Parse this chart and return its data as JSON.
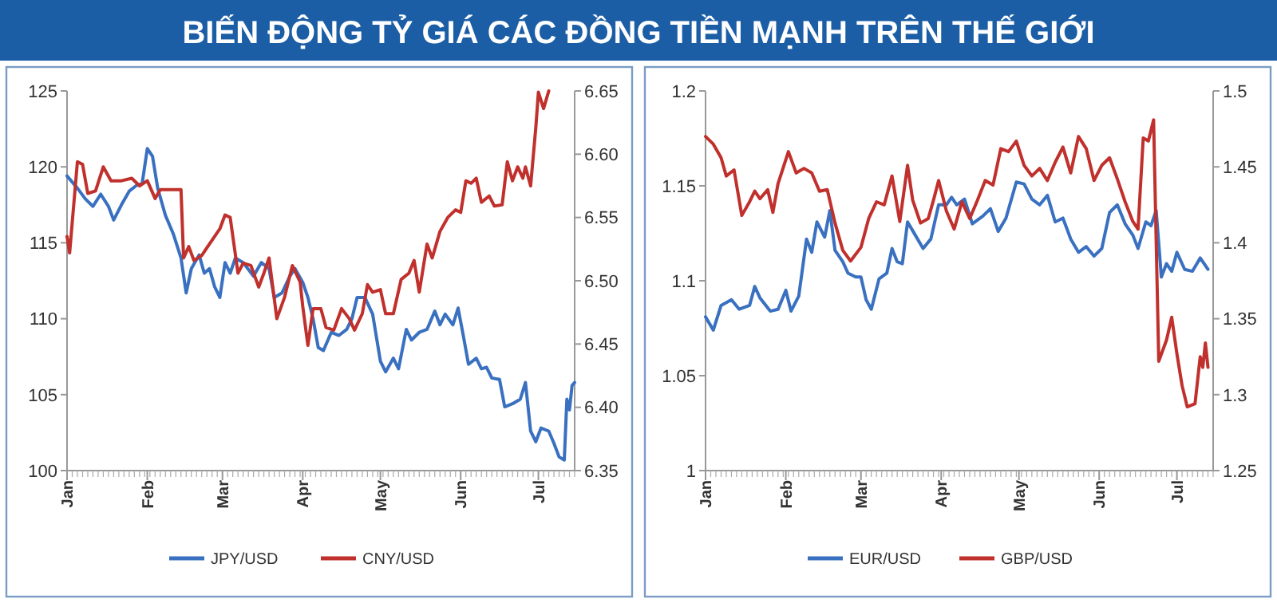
{
  "chart_data": [
    {
      "type": "line",
      "title": "BIẾN ĐỘNG TỶ GIÁ CÁC ĐỒNG TIỀN MẠNH TRÊN THẾ GIỚI",
      "legend": "bottom",
      "xlim": [
        "--01-01",
        "--07-15"
      ],
      "xticks": [
        {
          "value": "--01-01",
          "label": "Jan"
        },
        {
          "value": "--02-01",
          "label": "Feb"
        },
        {
          "value": "--03-01",
          "label": "Mar"
        },
        {
          "value": "--04-01",
          "label": "Apr"
        },
        {
          "value": "--05-01",
          "label": "May"
        },
        {
          "value": "--06-01",
          "label": "Jun"
        },
        {
          "value": "--07-01",
          "label": "Jul"
        }
      ],
      "ylim": [
        100,
        125
      ],
      "yticks": [
        100,
        105,
        110,
        115,
        120,
        125
      ],
      "y2lim": [
        6.35,
        6.65
      ],
      "y2ticks": [
        {
          "value": 6.35,
          "label": "6.35"
        },
        {
          "value": 6.4,
          "label": "6.40"
        },
        {
          "value": 6.45,
          "label": "6.45"
        },
        {
          "value": 6.5,
          "label": "6.50"
        },
        {
          "value": 6.55,
          "label": "6.55"
        },
        {
          "value": 6.6,
          "label": "6.60"
        },
        {
          "value": 6.65,
          "label": "6.65"
        }
      ],
      "series": [
        {
          "name": "JPY/USD",
          "color": "#3a70c0",
          "x": [
            "--01-01",
            "--01-05",
            "--01-08",
            "--01-11",
            "--01-14",
            "--01-17",
            "--01-19",
            "--01-22",
            "--01-25",
            "--01-28",
            "--01-30",
            "--02-01",
            "--02-03",
            "--02-05",
            "--02-08",
            "--02-11",
            "--02-14",
            "--02-16",
            "--02-18",
            "--02-21",
            "--02-23",
            "--02-25",
            "--02-27",
            "--02-29",
            "--03-02",
            "--03-04",
            "--03-06",
            "--03-09",
            "--03-13",
            "--03-16",
            "--03-19",
            "--03-21",
            "--03-24",
            "--03-27",
            "--03-29",
            "--04-01",
            "--04-03",
            "--04-05",
            "--04-07",
            "--04-09",
            "--04-12",
            "--04-15",
            "--04-18",
            "--04-20",
            "--04-22",
            "--04-25",
            "--04-28",
            "--05-01",
            "--05-03",
            "--05-06",
            "--05-08",
            "--05-11",
            "--05-13",
            "--05-16",
            "--05-19",
            "--05-22",
            "--05-24",
            "--05-26",
            "--05-29",
            "--05-31",
            "--06-02",
            "--06-04",
            "--06-07",
            "--06-09",
            "--06-11",
            "--06-13",
            "--06-16",
            "--06-18",
            "--06-21",
            "--06-24",
            "--06-26",
            "--06-28",
            "--06-30",
            "--07-02",
            "--07-05",
            "--07-07",
            "--07-09",
            "--07-11",
            "--07-12",
            "--07-13",
            "--07-14",
            "--07-15"
          ],
          "values": [
            119.4,
            118.6,
            117.9,
            117.4,
            118.2,
            117.4,
            116.5,
            117.5,
            118.4,
            118.8,
            118.9,
            121.2,
            120.7,
            118.6,
            116.8,
            115.6,
            114.0,
            111.7,
            113.3,
            114.2,
            113.0,
            113.3,
            112.1,
            111.4,
            113.7,
            113.0,
            114.0,
            113.7,
            112.8,
            113.7,
            113.3,
            111.4,
            111.7,
            112.8,
            113.3,
            112.4,
            111.4,
            110.0,
            108.1,
            107.9,
            109.1,
            108.9,
            109.3,
            110.0,
            111.4,
            111.4,
            110.3,
            107.2,
            106.5,
            107.4,
            106.7,
            109.3,
            108.6,
            109.1,
            109.3,
            110.5,
            109.6,
            110.3,
            109.6,
            110.7,
            108.9,
            107.0,
            107.4,
            106.7,
            106.8,
            106.1,
            106.0,
            104.2,
            104.4,
            104.7,
            105.8,
            102.6,
            101.9,
            102.8,
            102.6,
            101.8,
            100.9,
            100.7,
            104.7,
            104.0,
            105.6,
            105.8
          ]
        },
        {
          "name": "CNY/USD",
          "color": "#c0302c",
          "axis": "y2",
          "x": [
            "--01-01",
            "--01-02",
            "--01-05",
            "--01-07",
            "--01-09",
            "--01-12",
            "--01-15",
            "--01-18",
            "--01-22",
            "--01-26",
            "--01-29",
            "--02-01",
            "--02-04",
            "--02-06",
            "--02-10",
            "--02-14",
            "--02-15",
            "--02-17",
            "--02-19",
            "--02-22",
            "--02-25",
            "--02-29",
            "--03-02",
            "--03-04",
            "--03-07",
            "--03-09",
            "--03-12",
            "--03-15",
            "--03-17",
            "--03-19",
            "--03-22",
            "--03-25",
            "--03-28",
            "--03-31",
            "--04-01",
            "--04-03",
            "--04-05",
            "--04-08",
            "--04-10",
            "--04-13",
            "--04-16",
            "--04-19",
            "--04-21",
            "--04-24",
            "--04-26",
            "--04-28",
            "--05-01",
            "--05-03",
            "--05-06",
            "--05-09",
            "--05-12",
            "--05-14",
            "--05-16",
            "--05-19",
            "--05-21",
            "--05-24",
            "--05-27",
            "--05-30",
            "--06-01",
            "--06-03",
            "--06-05",
            "--06-07",
            "--06-09",
            "--06-12",
            "--06-14",
            "--06-17",
            "--06-19",
            "--06-21",
            "--06-23",
            "--06-25",
            "--06-26",
            "--06-28",
            "--06-30",
            "--07-01",
            "--07-03",
            "--07-05"
          ],
          "values": [
            6.535,
            6.522,
            6.594,
            6.592,
            6.569,
            6.571,
            6.59,
            6.579,
            6.579,
            6.581,
            6.575,
            6.579,
            6.565,
            6.572,
            6.572,
            6.572,
            6.518,
            6.527,
            6.516,
            6.52,
            6.529,
            6.541,
            6.552,
            6.55,
            6.506,
            6.514,
            6.512,
            6.495,
            6.506,
            6.518,
            6.47,
            6.487,
            6.512,
            6.499,
            6.48,
            6.449,
            6.478,
            6.478,
            6.463,
            6.461,
            6.478,
            6.47,
            6.461,
            6.474,
            6.497,
            6.491,
            6.493,
            6.474,
            6.474,
            6.501,
            6.506,
            6.516,
            6.491,
            6.529,
            6.518,
            6.539,
            6.55,
            6.556,
            6.554,
            6.579,
            6.577,
            6.581,
            6.562,
            6.567,
            6.559,
            6.56,
            6.594,
            6.579,
            6.59,
            6.581,
            6.59,
            6.575,
            6.621,
            6.649,
            6.636,
            6.65
          ]
        }
      ]
    },
    {
      "type": "line",
      "legend": "bottom",
      "xlim": [
        "--01-01",
        "--07-15"
      ],
      "xticks": [
        {
          "value": "--01-01",
          "label": "Jan"
        },
        {
          "value": "--02-01",
          "label": "Feb"
        },
        {
          "value": "--03-01",
          "label": "Mar"
        },
        {
          "value": "--04-01",
          "label": "Apr"
        },
        {
          "value": "--05-01",
          "label": "May"
        },
        {
          "value": "--06-01",
          "label": "Jun"
        },
        {
          "value": "--07-01",
          "label": "Jul"
        }
      ],
      "ylim": [
        1,
        1.2
      ],
      "yticks": [
        1,
        1.05,
        1.1,
        1.15,
        1.2
      ],
      "y2lim": [
        1.25,
        1.5
      ],
      "y2ticks": [
        1.25,
        1.3,
        1.35,
        1.4,
        1.45,
        1.5
      ],
      "series": [
        {
          "name": "EUR/USD",
          "color": "#3a70c0",
          "x": [
            "--01-01",
            "--01-04",
            "--01-07",
            "--01-11",
            "--01-14",
            "--01-18",
            "--01-20",
            "--01-22",
            "--01-26",
            "--01-29",
            "--02-01",
            "--02-03",
            "--02-06",
            "--02-09",
            "--02-11",
            "--02-13",
            "--02-16",
            "--02-18",
            "--02-20",
            "--02-23",
            "--02-25",
            "--02-28",
            "--03-01",
            "--03-03",
            "--03-05",
            "--03-08",
            "--03-11",
            "--03-13",
            "--03-15",
            "--03-17",
            "--03-19",
            "--03-22",
            "--03-25",
            "--03-28",
            "--03-31",
            "--04-03",
            "--04-05",
            "--04-07",
            "--04-10",
            "--04-13",
            "--04-17",
            "--04-20",
            "--04-23",
            "--04-26",
            "--04-30",
            "--05-03",
            "--05-06",
            "--05-09",
            "--05-12",
            "--05-15",
            "--05-18",
            "--05-21",
            "--05-24",
            "--05-27",
            "--05-30",
            "--06-02",
            "--06-05",
            "--06-08",
            "--06-11",
            "--06-14",
            "--06-16",
            "--06-19",
            "--06-21",
            "--06-23",
            "--06-25",
            "--06-27",
            "--06-29",
            "--07-01",
            "--07-04",
            "--07-07",
            "--07-10",
            "--07-13"
          ],
          "values": [
            1.081,
            1.074,
            1.087,
            1.09,
            1.085,
            1.087,
            1.097,
            1.091,
            1.084,
            1.085,
            1.095,
            1.084,
            1.092,
            1.122,
            1.115,
            1.131,
            1.123,
            1.137,
            1.116,
            1.11,
            1.104,
            1.102,
            1.102,
            1.09,
            1.085,
            1.101,
            1.104,
            1.117,
            1.11,
            1.109,
            1.131,
            1.124,
            1.117,
            1.122,
            1.14,
            1.14,
            1.144,
            1.14,
            1.143,
            1.13,
            1.134,
            1.138,
            1.126,
            1.133,
            1.152,
            1.151,
            1.143,
            1.14,
            1.145,
            1.131,
            1.133,
            1.122,
            1.115,
            1.118,
            1.113,
            1.117,
            1.136,
            1.14,
            1.13,
            1.124,
            1.117,
            1.131,
            1.129,
            1.137,
            1.102,
            1.109,
            1.105,
            1.115,
            1.106,
            1.105,
            1.112,
            1.106
          ]
        },
        {
          "name": "GBP/USD",
          "color": "#c0302c",
          "axis": "y2",
          "x": [
            "--01-01",
            "--01-04",
            "--01-07",
            "--01-09",
            "--01-12",
            "--01-15",
            "--01-18",
            "--01-20",
            "--01-22",
            "--01-25",
            "--01-27",
            "--01-29",
            "--02-02",
            "--02-05",
            "--02-08",
            "--02-11",
            "--02-14",
            "--02-17",
            "--02-20",
            "--02-23",
            "--02-26",
            "--03-01",
            "--03-04",
            "--03-07",
            "--03-10",
            "--03-13",
            "--03-16",
            "--03-19",
            "--03-21",
            "--03-24",
            "--03-27",
            "--03-29",
            "--03-31",
            "--04-03",
            "--04-06",
            "--04-09",
            "--04-12",
            "--04-15",
            "--04-18",
            "--04-21",
            "--04-24",
            "--04-27",
            "--04-30",
            "--05-03",
            "--05-06",
            "--05-09",
            "--05-12",
            "--05-15",
            "--05-18",
            "--05-21",
            "--05-24",
            "--05-27",
            "--05-30",
            "--06-02",
            "--06-05",
            "--06-08",
            "--06-11",
            "--06-14",
            "--06-16",
            "--06-18",
            "--06-20",
            "--06-22",
            "--06-24",
            "--06-27",
            "--06-29",
            "--07-01",
            "--07-03",
            "--07-05",
            "--07-08",
            "--07-10",
            "--07-11",
            "--07-12",
            "--07-13"
          ],
          "values": [
            1.47,
            1.465,
            1.456,
            1.444,
            1.448,
            1.418,
            1.427,
            1.434,
            1.429,
            1.435,
            1.42,
            1.439,
            1.46,
            1.446,
            1.449,
            1.446,
            1.434,
            1.435,
            1.413,
            1.395,
            1.388,
            1.397,
            1.416,
            1.427,
            1.425,
            1.444,
            1.414,
            1.451,
            1.428,
            1.413,
            1.416,
            1.428,
            1.441,
            1.421,
            1.409,
            1.427,
            1.416,
            1.428,
            1.441,
            1.438,
            1.462,
            1.46,
            1.467,
            1.451,
            1.444,
            1.449,
            1.441,
            1.453,
            1.463,
            1.446,
            1.47,
            1.462,
            1.441,
            1.451,
            1.456,
            1.442,
            1.427,
            1.414,
            1.409,
            1.469,
            1.467,
            1.481,
            1.322,
            1.336,
            1.351,
            1.327,
            1.306,
            1.292,
            1.294,
            1.325,
            1.318,
            1.334,
            1.318
          ]
        }
      ]
    }
  ]
}
